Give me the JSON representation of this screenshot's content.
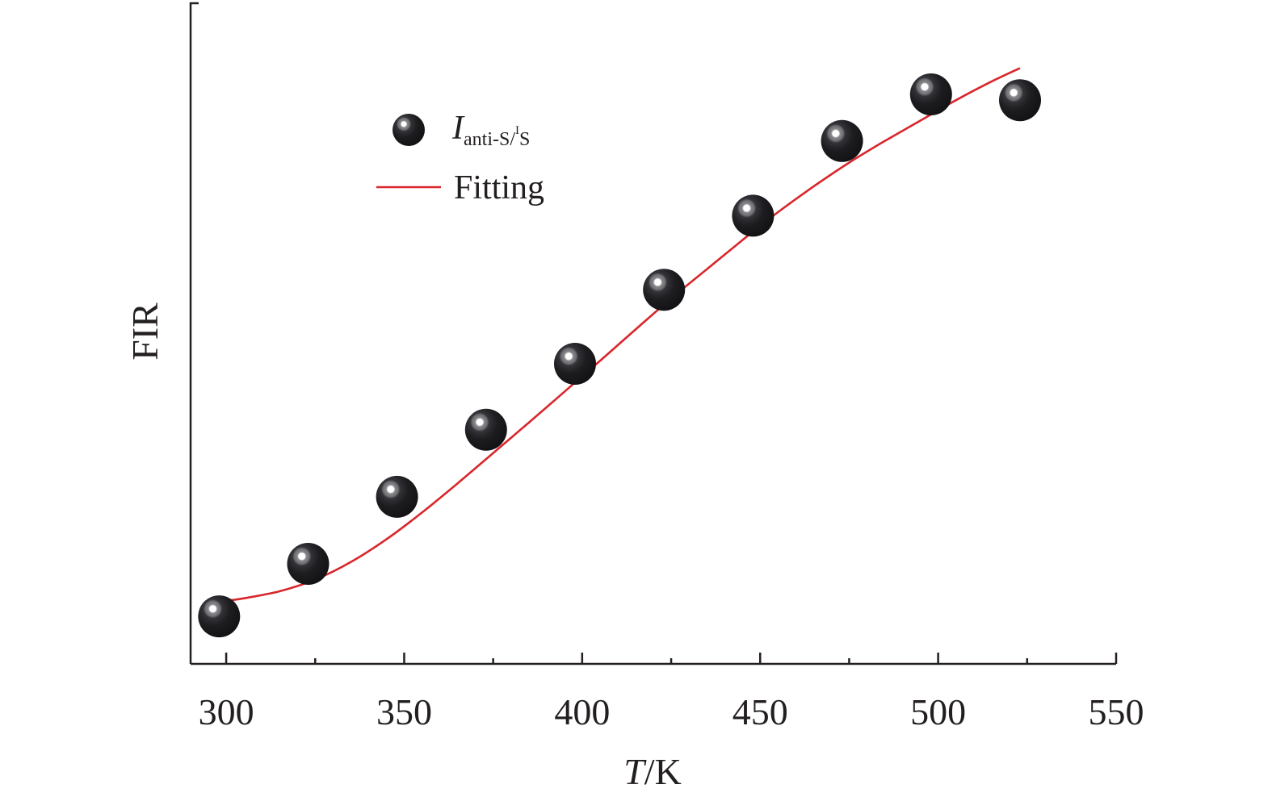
{
  "chart_data": {
    "type": "scatter",
    "xlabel": {
      "italic": "T",
      "rest": "/K"
    },
    "ylabel": "FIR",
    "xlim": [
      290,
      550
    ],
    "ylim": [
      0,
      1
    ],
    "y_ticks_labeled": false,
    "xticks": [
      300,
      350,
      400,
      450,
      500,
      550
    ],
    "x_minor_ticks": [
      325,
      375,
      425,
      475,
      525
    ],
    "grid": false,
    "legend": {
      "placement": "upper-left",
      "entries": [
        {
          "marker": "sphere",
          "label_main": "I",
          "label_sub_a": "anti-S/",
          "label_sup": "I",
          "label_sub_b": "S"
        },
        {
          "marker": "line",
          "label": "Fitting"
        }
      ]
    },
    "series": [
      {
        "kind": "points",
        "marker": "sphere",
        "x": [
          298,
          323,
          348,
          373,
          398,
          423,
          448,
          473,
          498,
          523
        ],
        "y": [
          0.04,
          0.13,
          0.245,
          0.36,
          0.473,
          0.6,
          0.727,
          0.855,
          0.935,
          0.925
        ]
      },
      {
        "name": "Fitting",
        "kind": "line",
        "color": "#d9262b",
        "x": [
          298,
          305,
          315,
          325,
          335,
          345,
          355,
          365,
          375,
          385,
          395,
          405,
          415,
          425,
          435,
          445,
          455,
          465,
          475,
          485,
          495,
          505,
          515,
          523
        ],
        "y": [
          0.065,
          0.071,
          0.083,
          0.103,
          0.133,
          0.172,
          0.218,
          0.268,
          0.32,
          0.372,
          0.425,
          0.478,
          0.532,
          0.585,
          0.635,
          0.685,
          0.733,
          0.777,
          0.818,
          0.855,
          0.89,
          0.925,
          0.957,
          0.98
        ]
      }
    ]
  }
}
